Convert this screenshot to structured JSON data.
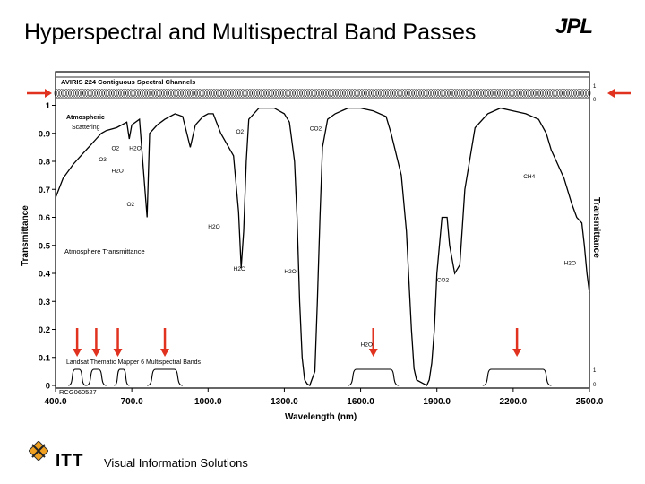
{
  "slide": {
    "title": "Hyperspectral and Multispectral Band Passes",
    "logo_text": "JPL",
    "footer_brand": "ITT",
    "footer_tagline": "Visual Information Solutions"
  },
  "chart_data": {
    "type": "line",
    "xlabel": "Wavelength (nm)",
    "ylabel": "Transmittance",
    "right_label": "Transmittance",
    "xlim": [
      400,
      2500
    ],
    "ylim": [
      0,
      1.12
    ],
    "x_ticks": [
      "400.0",
      "700.0",
      "1000.0",
      "1300.0",
      "1600.0",
      "1900.0",
      "2200.0",
      "2500.0"
    ],
    "y_ticks": [
      "0",
      "0.1",
      "0.2",
      "0.3",
      "0.4",
      "0.5",
      "0.6",
      "0.7",
      "0.8",
      "0.9",
      "1"
    ],
    "series": [
      {
        "name": "Atmosphere Transmittance",
        "x": [
          400,
          430,
          470,
          510,
          540,
          560,
          580,
          600,
          640,
          680,
          690,
          700,
          730,
          760,
          770,
          800,
          830,
          870,
          900,
          930,
          950,
          980,
          1000,
          1020,
          1050,
          1100,
          1120,
          1130,
          1140,
          1150,
          1160,
          1200,
          1260,
          1300,
          1320,
          1340,
          1350,
          1360,
          1370,
          1380,
          1390,
          1400,
          1420,
          1430,
          1440,
          1450,
          1470,
          1500,
          1550,
          1600,
          1650,
          1700,
          1720,
          1760,
          1780,
          1800,
          1810,
          1820,
          1840,
          1860,
          1870,
          1880,
          1890,
          1900,
          1920,
          1940,
          1950,
          1970,
          1990,
          2010,
          2050,
          2100,
          2150,
          2200,
          2250,
          2300,
          2330,
          2350,
          2370,
          2400,
          2430,
          2450,
          2470,
          2480,
          2490,
          2500
        ],
        "y": [
          0.67,
          0.74,
          0.79,
          0.83,
          0.86,
          0.88,
          0.9,
          0.91,
          0.92,
          0.94,
          0.88,
          0.93,
          0.95,
          0.6,
          0.9,
          0.93,
          0.95,
          0.97,
          0.96,
          0.85,
          0.93,
          0.96,
          0.97,
          0.97,
          0.9,
          0.82,
          0.62,
          0.42,
          0.55,
          0.8,
          0.95,
          0.99,
          0.99,
          0.97,
          0.94,
          0.8,
          0.6,
          0.3,
          0.1,
          0.02,
          0.005,
          0.0,
          0.05,
          0.3,
          0.6,
          0.85,
          0.95,
          0.97,
          0.99,
          0.99,
          0.98,
          0.96,
          0.9,
          0.75,
          0.55,
          0.2,
          0.06,
          0.02,
          0.01,
          0.0,
          0.02,
          0.08,
          0.2,
          0.4,
          0.6,
          0.6,
          0.5,
          0.4,
          0.43,
          0.7,
          0.92,
          0.97,
          0.99,
          0.98,
          0.97,
          0.95,
          0.9,
          0.84,
          0.8,
          0.74,
          0.65,
          0.6,
          0.58,
          0.5,
          0.4,
          0.33
        ]
      }
    ],
    "absorption_labels": [
      {
        "text": "O3",
        "x": 570,
        "y": 0.8
      },
      {
        "text": "O2",
        "x": 620,
        "y": 0.84
      },
      {
        "text": "H2O",
        "x": 690,
        "y": 0.84
      },
      {
        "text": "H2O",
        "x": 620,
        "y": 0.76
      },
      {
        "text": "O2",
        "x": 680,
        "y": 0.64
      },
      {
        "text": "H2O",
        "x": 1000,
        "y": 0.56
      },
      {
        "text": "O2",
        "x": 1110,
        "y": 0.9
      },
      {
        "text": "H2O",
        "x": 1100,
        "y": 0.41
      },
      {
        "text": "H2O",
        "x": 1300,
        "y": 0.4
      },
      {
        "text": "CO2",
        "x": 1400,
        "y": 0.91
      },
      {
        "text": "CO2",
        "x": 1900,
        "y": 0.37
      },
      {
        "text": "H2O",
        "x": 1600,
        "y": 0.14
      },
      {
        "text": "CH4",
        "x": 2240,
        "y": 0.74
      },
      {
        "text": "H2O",
        "x": 2400,
        "y": 0.43
      }
    ],
    "annotations": {
      "aviris": "AVIRIS 224 Contiguous Spectral Channels",
      "scattering_1": "Atmospheric",
      "scattering_2": "Scattering",
      "atm_trans": "Atmosphere Transmittance",
      "landsat": "Landsat Thematic Mapper 6 Multispectral Bands",
      "fig_id": "RCG060527",
      "band_scale_top": "1",
      "band_scale_zero": "0"
    },
    "landsat_bands": [
      {
        "start": 450,
        "end": 520
      },
      {
        "start": 520,
        "end": 600
      },
      {
        "start": 630,
        "end": 690
      },
      {
        "start": 760,
        "end": 900
      },
      {
        "start": 1550,
        "end": 1750
      },
      {
        "start": 2080,
        "end": 2350
      }
    ],
    "arrow_bands_x": [
      485,
      560,
      645,
      830,
      1650,
      2215
    ],
    "grid": false,
    "colors": {
      "line": "#000000",
      "arrow": "#e0321e",
      "axis": "#000000"
    }
  }
}
